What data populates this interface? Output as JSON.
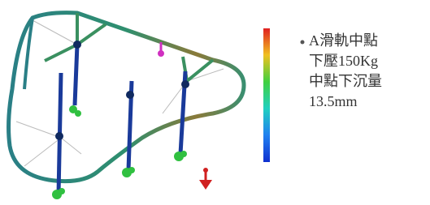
{
  "annotation": {
    "lines": [
      "A滑軌中點",
      "下壓150Kg",
      "中點下沉量",
      "13.5mm"
    ]
  }
}
